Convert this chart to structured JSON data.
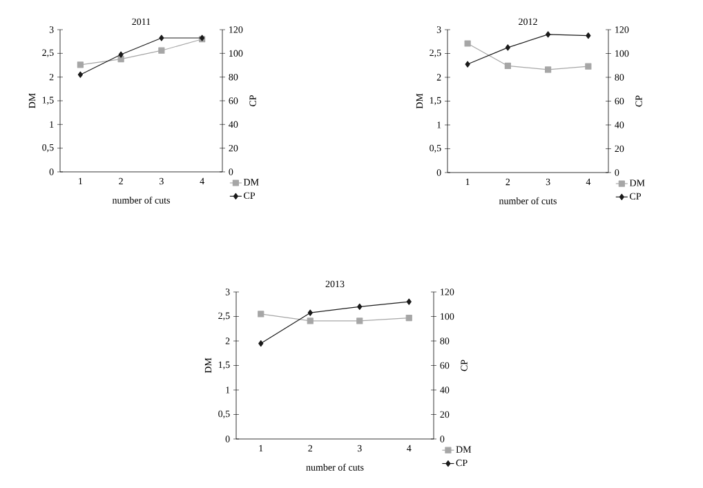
{
  "chart_data": [
    {
      "type": "line",
      "title": "2011",
      "xlabel": "number of cuts",
      "ylabel": "DM",
      "y2label": "CP",
      "categories": [
        "1",
        "2",
        "3",
        "4"
      ],
      "series": [
        {
          "name": "DM",
          "color": "#a6a6a6",
          "marker": "square",
          "values": [
            2.26,
            2.38,
            2.56,
            2.8
          ]
        },
        {
          "name": "CP",
          "color": "#1a1a1a",
          "marker": "diamond",
          "axis": "y2",
          "values": [
            82,
            99,
            113,
            113
          ]
        }
      ],
      "ylim": [
        0,
        3
      ],
      "yticks": [
        0,
        {
          "value": 0.5,
          "label": "0,5"
        },
        1,
        {
          "value": 1.5,
          "label": "1,5"
        },
        2,
        {
          "value": 2.5,
          "label": "2,5"
        },
        3
      ],
      "y2lim": [
        0,
        120
      ],
      "y2ticks": [
        0,
        20,
        40,
        60,
        80,
        100,
        120
      ],
      "legend": "right",
      "grid": false
    },
    {
      "type": "line",
      "title": "2012",
      "xlabel": "number of cuts",
      "ylabel": "DM",
      "y2label": "CP",
      "categories": [
        "1",
        "2",
        "3",
        "4"
      ],
      "series": [
        {
          "name": "DM",
          "color": "#a6a6a6",
          "marker": "square",
          "values": [
            2.71,
            2.24,
            2.16,
            2.23
          ]
        },
        {
          "name": "CP",
          "color": "#1a1a1a",
          "marker": "diamond",
          "axis": "y2",
          "values": [
            91,
            105,
            116,
            115
          ]
        }
      ],
      "ylim": [
        0,
        3
      ],
      "yticks": [
        0,
        {
          "value": 0.5,
          "label": "0,5"
        },
        1,
        {
          "value": 1.5,
          "label": "1,5"
        },
        2,
        {
          "value": 2.5,
          "label": "2,5"
        },
        3
      ],
      "y2lim": [
        0,
        120
      ],
      "y2ticks": [
        0,
        20,
        40,
        60,
        80,
        100,
        120
      ],
      "legend": "right",
      "grid": false
    },
    {
      "type": "line",
      "title": "2013",
      "xlabel": "number of cuts",
      "ylabel": "DM",
      "y2label": "CP",
      "categories": [
        "1",
        "2",
        "3",
        "4"
      ],
      "series": [
        {
          "name": "DM",
          "color": "#a6a6a6",
          "marker": "square",
          "values": [
            2.55,
            2.41,
            2.41,
            2.47
          ]
        },
        {
          "name": "CP",
          "color": "#1a1a1a",
          "marker": "diamond",
          "axis": "y2",
          "values": [
            78,
            103,
            108,
            112
          ]
        }
      ],
      "ylim": [
        0,
        3
      ],
      "yticks": [
        0,
        {
          "value": 0.5,
          "label": "0,5"
        },
        1,
        {
          "value": 1.5,
          "label": "1,5"
        },
        2,
        {
          "value": 2.5,
          "label": "2,5"
        },
        3
      ],
      "y2lim": [
        0,
        120
      ],
      "y2ticks": [
        0,
        20,
        40,
        60,
        80,
        100,
        120
      ],
      "legend": "right",
      "grid": false
    }
  ]
}
